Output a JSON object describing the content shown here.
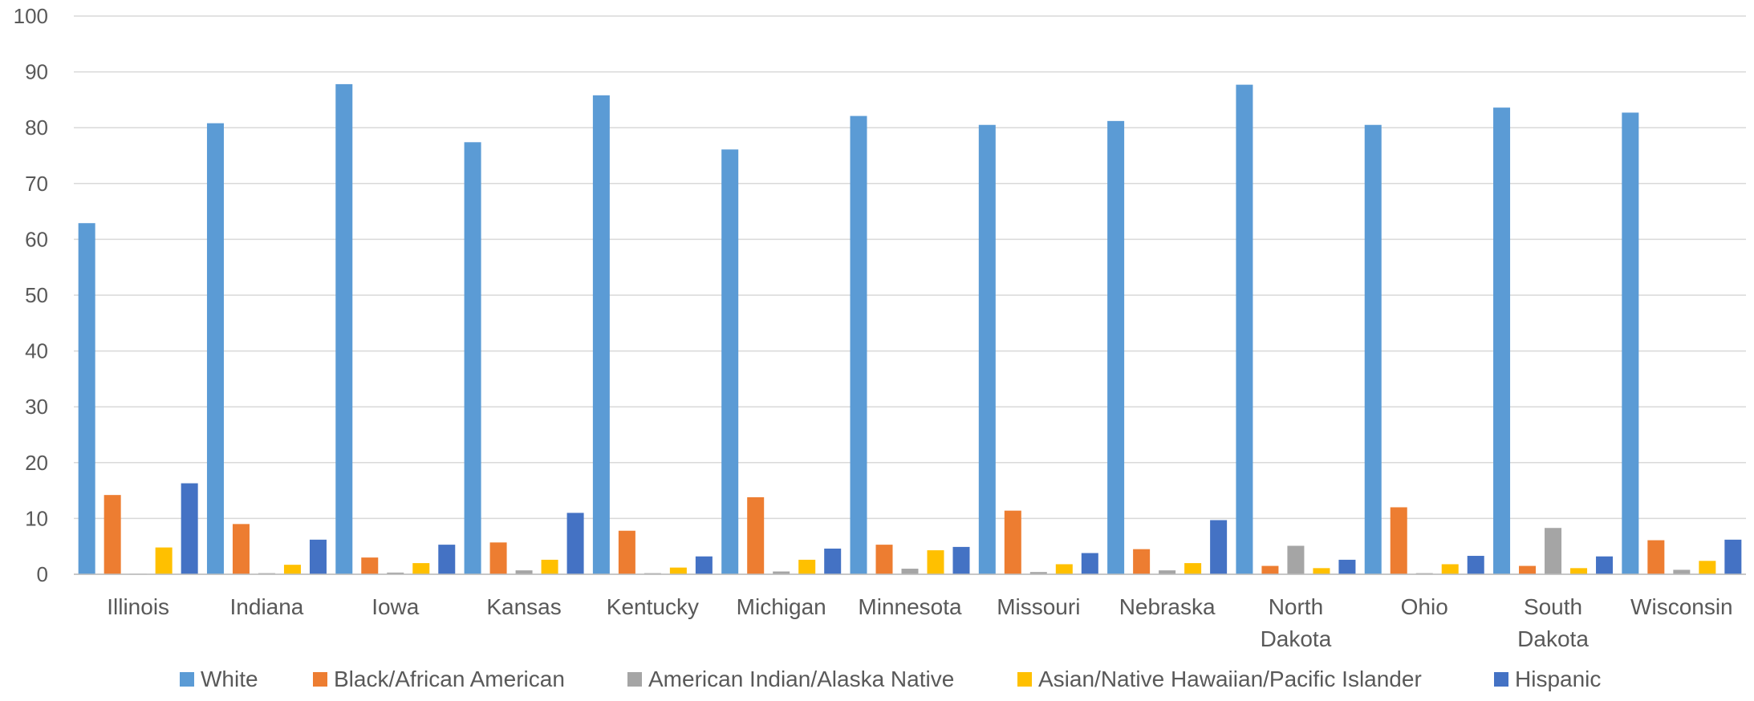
{
  "chart_data": {
    "type": "bar",
    "title": "",
    "xlabel": "",
    "ylabel": "",
    "ylim": [
      0,
      100
    ],
    "yticks": [
      0,
      10,
      20,
      30,
      40,
      50,
      60,
      70,
      80,
      90,
      100
    ],
    "grid": true,
    "legend_position": "bottom",
    "categories": [
      [
        "Illinois"
      ],
      [
        "Indiana"
      ],
      [
        "Iowa"
      ],
      [
        "Kansas"
      ],
      [
        "Kentucky"
      ],
      [
        "Michigan"
      ],
      [
        "Minnesota"
      ],
      [
        "Missouri"
      ],
      [
        "Nebraska"
      ],
      [
        "North",
        "Dakota"
      ],
      [
        "Ohio"
      ],
      [
        "South",
        "Dakota"
      ],
      [
        "Wisconsin"
      ]
    ],
    "series": [
      {
        "name": "White",
        "color": "#5b9bd5",
        "values": [
          62.9,
          80.8,
          87.8,
          77.4,
          85.8,
          76.1,
          82.1,
          80.5,
          81.2,
          87.7,
          80.5,
          83.6,
          82.7
        ]
      },
      {
        "name": "Black/African American",
        "color": "#ed7d31",
        "values": [
          14.2,
          9.0,
          3.0,
          5.7,
          7.8,
          13.8,
          5.3,
          11.4,
          4.5,
          1.5,
          12.0,
          1.5,
          6.1
        ]
      },
      {
        "name": "American Indian/Alaska Native",
        "color": "#a5a5a5",
        "values": [
          0.1,
          0.2,
          0.3,
          0.7,
          0.2,
          0.5,
          1.0,
          0.4,
          0.7,
          5.1,
          0.2,
          8.3,
          0.8
        ]
      },
      {
        "name": "Asian/Native Hawaiian/Pacific Islander",
        "color": "#ffc000",
        "values": [
          4.8,
          1.7,
          2.0,
          2.6,
          1.2,
          2.6,
          4.3,
          1.8,
          2.0,
          1.1,
          1.8,
          1.1,
          2.4
        ]
      },
      {
        "name": "Hispanic",
        "color": "#4472c4",
        "values": [
          16.3,
          6.2,
          5.3,
          11.0,
          3.2,
          4.6,
          4.9,
          3.8,
          9.7,
          2.6,
          3.3,
          3.2,
          6.2
        ]
      }
    ]
  }
}
